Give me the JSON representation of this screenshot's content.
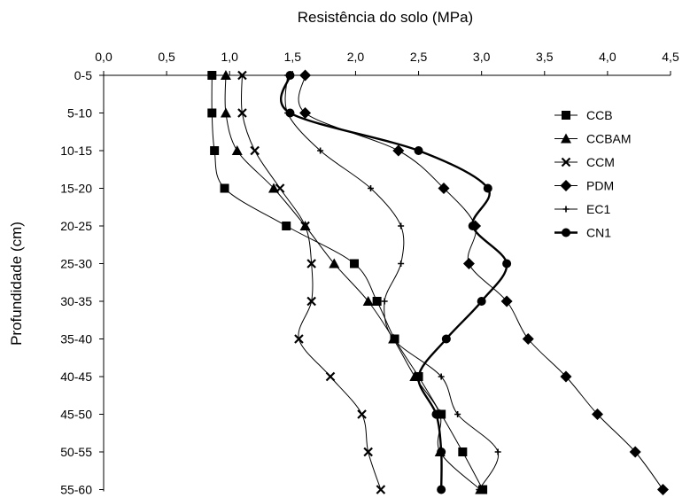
{
  "chart_data": {
    "type": "line",
    "title": "",
    "xlabel": "Resistência do solo (MPa)",
    "ylabel": "Profundidade (cm)",
    "xlim": [
      0,
      4.5
    ],
    "x_axis_position": "top",
    "x_ticks": [
      "0,0",
      "0,5",
      "1,0",
      "1,5",
      "2,0",
      "2,5",
      "3,0",
      "3,5",
      "4,0",
      "4,5"
    ],
    "categories": [
      "0-5",
      "5-10",
      "10-15",
      "15-20",
      "20-25",
      "25-30",
      "30-35",
      "35-40",
      "40-45",
      "45-50",
      "50-55",
      "55-60"
    ],
    "grid": false,
    "legend_position": "right",
    "series": [
      {
        "name": "CCB",
        "marker": "square",
        "values": [
          0.86,
          0.86,
          0.88,
          0.96,
          1.45,
          1.99,
          2.17,
          2.31,
          2.5,
          2.68,
          2.85,
          3.01
        ]
      },
      {
        "name": "CCBAM",
        "marker": "triangle",
        "values": [
          0.97,
          0.97,
          1.06,
          1.35,
          1.6,
          1.83,
          2.1,
          2.3,
          2.47,
          2.67,
          2.67,
          2.99
        ]
      },
      {
        "name": "CCM",
        "marker": "x",
        "values": [
          1.1,
          1.1,
          1.2,
          1.4,
          1.6,
          1.65,
          1.65,
          1.55,
          1.8,
          2.05,
          2.1,
          2.2
        ]
      },
      {
        "name": "PDM",
        "marker": "diamond",
        "values": [
          1.6,
          1.6,
          2.34,
          2.7,
          2.95,
          2.9,
          3.2,
          3.37,
          3.67,
          3.92,
          4.22,
          4.44
        ]
      },
      {
        "name": "EC1",
        "marker": "plus",
        "values": [
          1.46,
          1.46,
          1.72,
          2.12,
          2.36,
          2.36,
          2.23,
          2.3,
          2.68,
          2.81,
          3.13,
          2.98
        ]
      },
      {
        "name": "CN1",
        "marker": "circle",
        "bold": true,
        "values": [
          1.48,
          1.48,
          2.5,
          3.05,
          2.93,
          3.2,
          3.0,
          2.72,
          2.5,
          2.64,
          2.68,
          2.68
        ]
      }
    ]
  }
}
